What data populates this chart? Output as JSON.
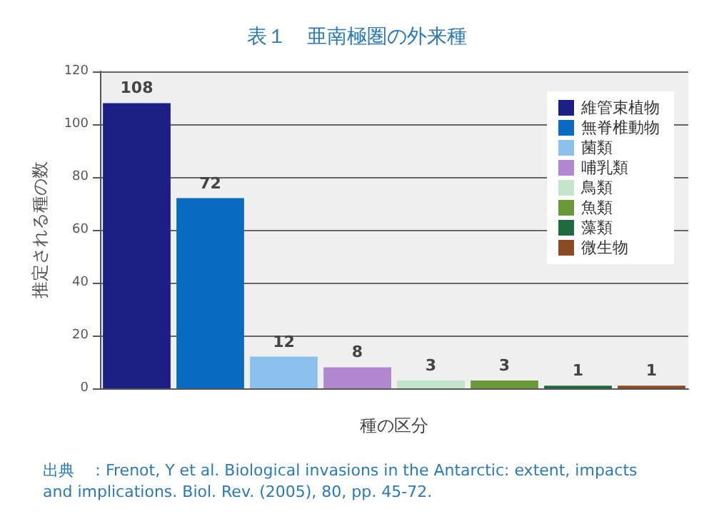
{
  "chart_data": {
    "type": "bar",
    "title": "表１　亜南極圏の外来種",
    "xlabel": "種の区分",
    "ylabel": "推定される種の数",
    "categories": [
      null,
      null,
      null,
      null,
      null,
      null,
      null,
      null
    ],
    "series": [
      {
        "name": "維管束植物",
        "color": "#1c1f84",
        "values": [
          108,
          null,
          null,
          null,
          null,
          null,
          null,
          null
        ]
      },
      {
        "name": "無脊椎動物",
        "color": "#0a6cc0",
        "values": [
          null,
          72,
          null,
          null,
          null,
          null,
          null,
          null
        ]
      },
      {
        "name": "菌類",
        "color": "#8cc0ec",
        "values": [
          null,
          null,
          12,
          null,
          null,
          null,
          null,
          null
        ]
      },
      {
        "name": "哺乳類",
        "color": "#b187cf",
        "values": [
          null,
          null,
          null,
          8,
          null,
          null,
          null,
          null
        ]
      },
      {
        "name": "鳥類",
        "color": "#c4e4cc",
        "values": [
          null,
          null,
          null,
          null,
          3,
          null,
          null,
          null
        ]
      },
      {
        "name": "魚類",
        "color": "#6a9a38",
        "values": [
          null,
          null,
          null,
          null,
          null,
          3,
          null,
          null
        ]
      },
      {
        "name": "藻類",
        "color": "#1f6a40",
        "values": [
          null,
          null,
          null,
          null,
          null,
          null,
          1,
          null
        ]
      },
      {
        "name": "微生物",
        "color": "#8a4a24",
        "values": [
          null,
          null,
          null,
          null,
          null,
          null,
          null,
          1
        ]
      }
    ],
    "ylim": [
      0,
      120
    ],
    "yticks": [
      0,
      20,
      40,
      60,
      80,
      100,
      120
    ],
    "grid": "y",
    "legend": "top right",
    "tick_labels": "y",
    "data_labels": true,
    "annotations": [
      "出典　：Frenot, Y et al. Biological invasions in the Antarctic: extent, impacts and implications. Biol. Rev. (2005), 80, pp. 45-72."
    ]
  }
}
